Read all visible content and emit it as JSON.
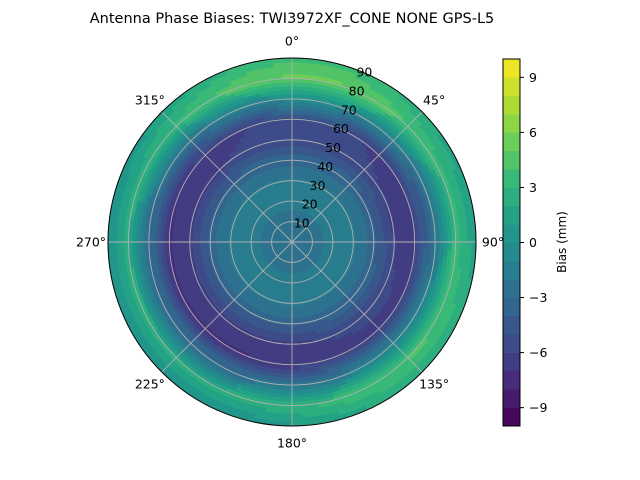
{
  "chart_data": {
    "type": "heatmap",
    "subtype": "polar-contour",
    "title": "Antenna Phase Biases: TWI3972XF_CONE  NONE GPS-L5",
    "angle_ticks": [
      "0°",
      "45°",
      "90°",
      "135°",
      "180°",
      "225°",
      "270°",
      "315°"
    ],
    "angle_tick_values_deg": [
      0,
      45,
      90,
      135,
      180,
      225,
      270,
      315
    ],
    "radial_ticks": [
      "10",
      "20",
      "30",
      "40",
      "50",
      "60",
      "70",
      "80",
      "90"
    ],
    "radial_tick_values": [
      10,
      20,
      30,
      40,
      50,
      60,
      70,
      80,
      90
    ],
    "radial_range": [
      0,
      90
    ],
    "theta_zero": "top",
    "theta_direction": "clockwise",
    "grid": true,
    "colormap": "viridis",
    "colorbar": {
      "label": "Bias (mm)",
      "range": [
        -10,
        10
      ],
      "levels": 20,
      "ticks": [
        "−9",
        "−6",
        "−3",
        "0",
        "3",
        "6",
        "9"
      ],
      "tick_values": [
        -9,
        -6,
        -3,
        0,
        3,
        6,
        9
      ],
      "position": "right"
    },
    "field_description_values": {
      "center_bias_mm": -3,
      "ring_profile_by_radius": [
        {
          "r": 0,
          "bias": -3.0
        },
        {
          "r": 10,
          "bias": -2.5
        },
        {
          "r": 20,
          "bias": -1.5
        },
        {
          "r": 30,
          "bias": -1.8
        },
        {
          "r": 40,
          "bias": -3.5
        },
        {
          "r": 50,
          "bias": -6.0
        },
        {
          "r": 60,
          "bias": -6.5
        },
        {
          "r": 70,
          "bias": -2.0
        },
        {
          "r": 80,
          "bias": 3.5
        },
        {
          "r": 90,
          "bias": 1.5
        }
      ]
    }
  }
}
